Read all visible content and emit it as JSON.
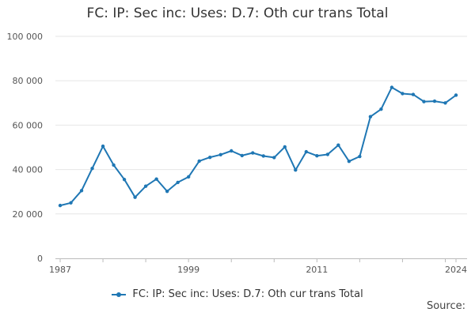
{
  "chart_data": {
    "type": "line",
    "title": "FC: IP: Sec inc: Uses: D.7: Oth cur trans Total",
    "xlabel": "",
    "ylabel": "",
    "x": [
      1987,
      1988,
      1989,
      1990,
      1991,
      1992,
      1993,
      1994,
      1995,
      1996,
      1997,
      1998,
      1999,
      2000,
      2001,
      2002,
      2003,
      2004,
      2005,
      2006,
      2007,
      2008,
      2009,
      2010,
      2011,
      2012,
      2013,
      2014,
      2015,
      2016,
      2017,
      2018,
      2019,
      2020,
      2021,
      2022,
      2023,
      2024
    ],
    "series": [
      {
        "name": "FC: IP: Sec inc: Uses: D.7: Oth cur trans Total",
        "color": "#1f77b4",
        "values": [
          23800,
          25000,
          30500,
          40500,
          50500,
          42000,
          35500,
          27500,
          32500,
          35700,
          30200,
          34200,
          36700,
          43800,
          45500,
          46700,
          48400,
          46300,
          47500,
          46100,
          45400,
          50200,
          39800,
          48000,
          46200,
          46800,
          51000,
          43700,
          45900,
          63800,
          67200,
          77000,
          74200,
          73800,
          70600,
          70800,
          70000,
          73500
        ]
      }
    ],
    "ylim": [
      0,
      100000
    ],
    "y_ticks": [
      0,
      20000,
      40000,
      60000,
      80000,
      100000
    ],
    "y_tick_labels": [
      "0",
      "20 000",
      "40 000",
      "60 000",
      "80 000",
      "100 000"
    ],
    "x_tick_labels": [
      {
        "x": 1987,
        "label": "1987"
      },
      {
        "x": 1999,
        "label": "1999"
      },
      {
        "x": 2011,
        "label": "2011"
      },
      {
        "x": 2024,
        "label": "2024"
      }
    ],
    "grid": true,
    "legend_position": "bottom-center"
  },
  "source_label": "Source:"
}
